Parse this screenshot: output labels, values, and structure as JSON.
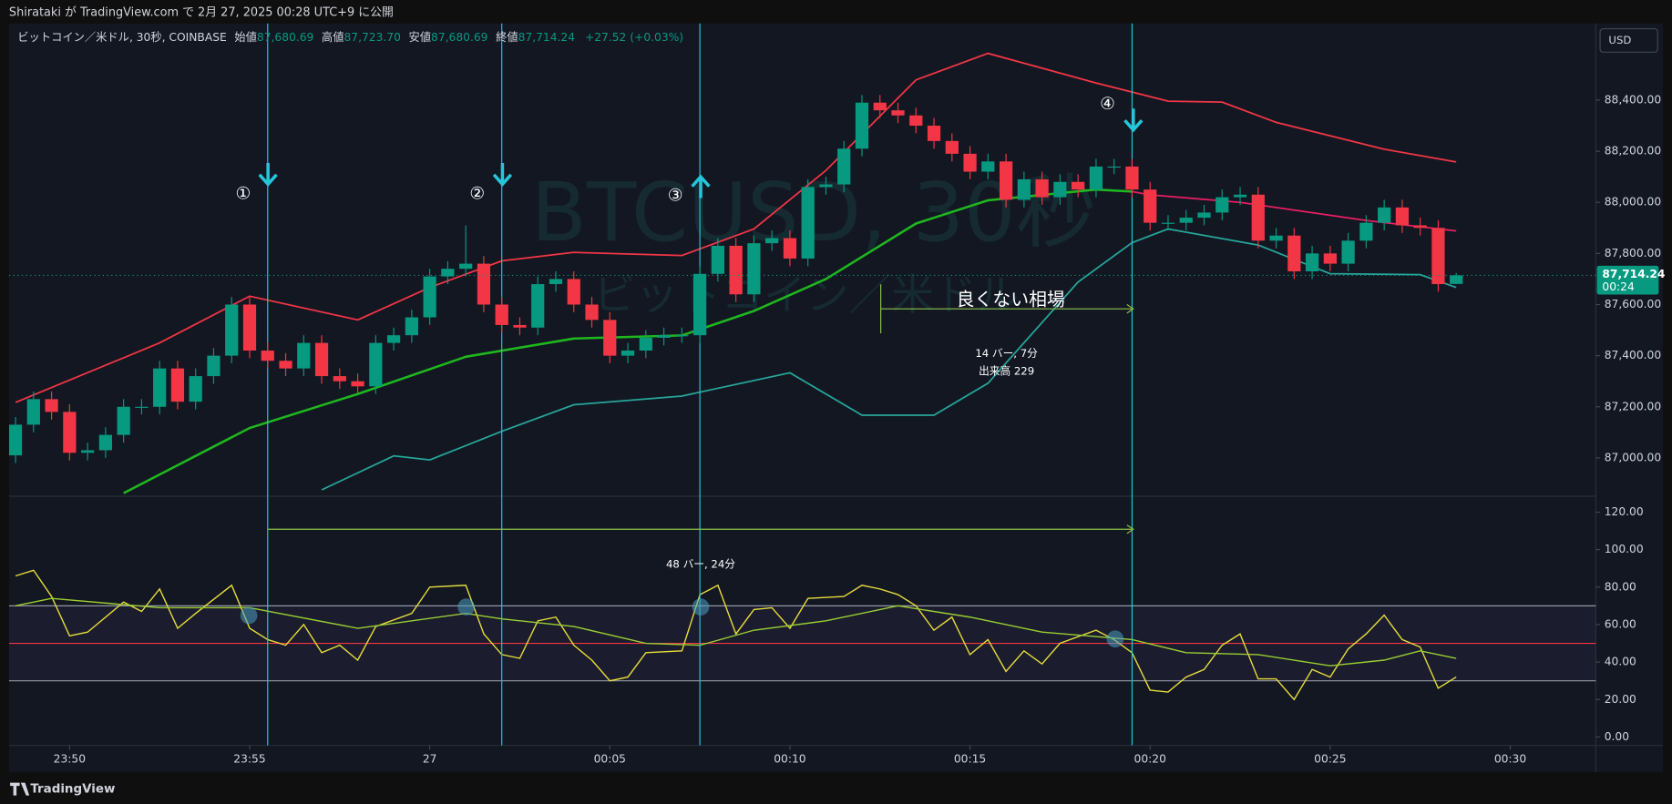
{
  "header": {
    "publisher": "Shirataki が TradingView.com で 2月 27, 2025 00:28 UTC+9 に公開"
  },
  "footer": {
    "brand": "TradingView"
  },
  "currency": "USD",
  "chart_data": {
    "type": "candlestick",
    "title": "ビットコイン／米ドル, 30秒, COINBASE",
    "legend": {
      "open_label": "始値",
      "open": "87,680.69",
      "high_label": "高値",
      "high": "87,723.70",
      "low_label": "安値",
      "low": "87,680.69",
      "close_label": "終値",
      "close": "87,714.24",
      "change": "+27.52 (+0.03%)"
    },
    "watermark": [
      "BTCUSD, 30秒",
      "ビットコイン／米ドル"
    ],
    "last_price_label": "87,714.24",
    "countdown": "00:24",
    "colors": {
      "up": "#089981",
      "down": "#f23645"
    },
    "open": [
      87010,
      87130,
      87230,
      87180,
      87020,
      87030,
      87090,
      87200,
      87200,
      87350,
      87220,
      87320,
      87400,
      87600,
      87420,
      87380,
      87350,
      87450,
      87320,
      87300,
      87280,
      87450,
      87480,
      87550,
      87710,
      87740,
      87760,
      87600,
      87520,
      87510,
      87680,
      87700,
      87600,
      87540,
      87400,
      87420,
      87470,
      87480,
      87480,
      87720,
      87830,
      87640,
      87840,
      87860,
      87780,
      88060,
      88070,
      88210,
      88390,
      88360,
      88340,
      88300,
      88240,
      88190,
      88120,
      88160,
      88010,
      88090,
      88020,
      88080,
      88050,
      88140,
      88140,
      88050,
      87920,
      87920,
      87940,
      87960,
      88020,
      88030,
      87850,
      87870,
      87730,
      87800,
      87760,
      87850,
      87920,
      87980,
      87910,
      87900,
      87680.69
    ],
    "high": [
      87160,
      87260,
      87260,
      87210,
      87060,
      87120,
      87230,
      87230,
      87380,
      87380,
      87350,
      87430,
      87630,
      87630,
      87450,
      87410,
      87480,
      87480,
      87350,
      87330,
      87480,
      87510,
      87580,
      87740,
      87770,
      87910,
      87790,
      87630,
      87550,
      87710,
      87730,
      87730,
      87630,
      87570,
      87450,
      87500,
      87510,
      87510,
      87750,
      87860,
      87860,
      87870,
      87890,
      87890,
      88090,
      88100,
      88240,
      88420,
      88420,
      88390,
      88370,
      88330,
      88270,
      88220,
      88190,
      88190,
      88120,
      88120,
      88110,
      88110,
      88170,
      88170,
      88170,
      88080,
      87950,
      87970,
      87990,
      88050,
      88060,
      88060,
      87900,
      87900,
      87830,
      87830,
      87880,
      87950,
      88010,
      88010,
      87940,
      87930,
      87723.7
    ],
    "low": [
      86980,
      87100,
      87150,
      86990,
      86990,
      87000,
      87060,
      87170,
      87170,
      87190,
      87190,
      87290,
      87370,
      87390,
      87350,
      87320,
      87320,
      87290,
      87270,
      87250,
      87250,
      87420,
      87450,
      87520,
      87680,
      87710,
      87570,
      87490,
      87480,
      87480,
      87650,
      87570,
      87510,
      87370,
      87370,
      87390,
      87440,
      87450,
      87450,
      87690,
      87610,
      87610,
      87810,
      87750,
      87750,
      88030,
      88040,
      88180,
      88330,
      88310,
      88270,
      88210,
      88160,
      88090,
      88090,
      87980,
      87980,
      87990,
      87990,
      88020,
      88020,
      88110,
      88020,
      87890,
      87890,
      87890,
      87910,
      87930,
      87990,
      87820,
      87820,
      87700,
      87700,
      87730,
      87730,
      87820,
      87890,
      87880,
      87870,
      87650,
      87680.69
    ],
    "close": [
      87130,
      87230,
      87180,
      87020,
      87030,
      87090,
      87200,
      87200,
      87350,
      87220,
      87320,
      87400,
      87600,
      87420,
      87380,
      87350,
      87450,
      87320,
      87300,
      87280,
      87450,
      87480,
      87550,
      87710,
      87740,
      87760,
      87600,
      87520,
      87510,
      87680,
      87700,
      87600,
      87540,
      87400,
      87420,
      87470,
      87480,
      87480,
      87720,
      87830,
      87640,
      87840,
      87860,
      87780,
      88060,
      88070,
      88210,
      88390,
      88360,
      88340,
      88300,
      88240,
      88190,
      88120,
      88160,
      88010,
      88090,
      88020,
      88080,
      88050,
      88140,
      88140,
      88050,
      87920,
      87920,
      87940,
      87960,
      88020,
      88030,
      87850,
      87870,
      87730,
      87800,
      87760,
      87850,
      87920,
      87980,
      87910,
      87900,
      87680,
      87714.24
    ],
    "xlim": [
      -0.36,
      87.75
    ],
    "xticks": [
      {
        "value": 3,
        "label": "23:50"
      },
      {
        "value": 13,
        "label": "23:55"
      },
      {
        "value": 23,
        "label": "27"
      },
      {
        "value": 33,
        "label": "00:05"
      },
      {
        "value": 43,
        "label": "00:10"
      },
      {
        "value": 53,
        "label": "00:15"
      },
      {
        "value": 63,
        "label": "00:20"
      },
      {
        "value": 73,
        "label": "00:25"
      },
      {
        "value": 83,
        "label": "00:30"
      }
    ],
    "ylim": [
      86850,
      88700
    ],
    "yticks": [
      {
        "value": 87000,
        "label": "87,000.00"
      },
      {
        "value": 87200,
        "label": "87,200.00"
      },
      {
        "value": 87400,
        "label": "87,400.00"
      },
      {
        "value": 87600,
        "label": "87,600.00"
      },
      {
        "value": 87800,
        "label": "87,800.00"
      },
      {
        "value": 88000,
        "label": "88,000.00"
      },
      {
        "value": 88200,
        "label": "88,200.00"
      },
      {
        "value": 88400,
        "label": "88,400.00"
      }
    ],
    "overlays": [
      {
        "color": "#f23645",
        "x": [
          0,
          8,
          13,
          19,
          23,
          27,
          31,
          37,
          41,
          45,
          50,
          54,
          60,
          64,
          67,
          70,
          76,
          80
        ],
        "values": [
          87217,
          87450,
          87633,
          87540,
          87667,
          87771,
          87804,
          87792,
          87896,
          88125,
          88479,
          88583,
          88467,
          88396,
          88392,
          88313,
          88208,
          88158
        ]
      },
      {
        "color": "#1fb71f",
        "x": [
          6,
          13,
          19,
          25,
          31,
          37,
          41,
          45,
          50,
          54,
          60,
          62
        ],
        "values": [
          86862,
          87117,
          87250,
          87396,
          87467,
          87479,
          87575,
          87700,
          87917,
          88008,
          88050,
          88042
        ]
      },
      {
        "color": "#e91e63",
        "x": [
          62,
          63,
          68,
          75,
          80
        ],
        "values": [
          88042,
          88029,
          88000,
          87929,
          87888
        ]
      },
      {
        "color": "#26a69a",
        "x": [
          17,
          21,
          23,
          27,
          31,
          37,
          43,
          47,
          51,
          54,
          59,
          62,
          64,
          69,
          73,
          78,
          80
        ],
        "values": [
          86875,
          87008,
          86992,
          87104,
          87208,
          87242,
          87333,
          87167,
          87167,
          87292,
          87688,
          87842,
          87896,
          87833,
          87721,
          87717,
          87667
        ]
      }
    ],
    "annotations": [
      {
        "x": 14,
        "label": "①"
      },
      {
        "x": 27,
        "label": "②"
      },
      {
        "x": 38,
        "label": "③"
      },
      {
        "x": 62,
        "label": "④"
      }
    ],
    "measure": {
      "label": "良くない相場",
      "bars": "14 バー, 7分",
      "volume": "出来高 229"
    },
    "rsi": {
      "ylim": [
        -4.5,
        128.5
      ],
      "yticks": [
        {
          "value": 0,
          "label": "0.00"
        },
        {
          "value": 20,
          "label": "20.00"
        },
        {
          "value": 40,
          "label": "40.00"
        },
        {
          "value": 60,
          "label": "60.00"
        },
        {
          "value": 80,
          "label": "80.00"
        },
        {
          "value": 100,
          "label": "100.00"
        },
        {
          "value": 120,
          "label": "120.00"
        }
      ],
      "levels": [
        70,
        50,
        30
      ],
      "measure": "48 バー, 24分",
      "series": [
        {
          "color": "#e6dc3c",
          "x": [
            0,
            1,
            2,
            3,
            4,
            6,
            7,
            8,
            9,
            10,
            12,
            13,
            14,
            15,
            16,
            17,
            18,
            19,
            20,
            22,
            23,
            25,
            26,
            27,
            28,
            29,
            30,
            31,
            32,
            33,
            34,
            35,
            37,
            38,
            39,
            40,
            41,
            42,
            43,
            44,
            46,
            47,
            48,
            49,
            50,
            51,
            52,
            53,
            54,
            55,
            56,
            57,
            58,
            60,
            61,
            62,
            63,
            64,
            65,
            66,
            67,
            68,
            69,
            70,
            71,
            72,
            73,
            74,
            75,
            76,
            77,
            78,
            79,
            80
          ],
          "values": [
            86,
            89,
            75,
            54,
            56,
            72,
            67,
            79,
            58,
            66,
            81,
            58,
            52,
            49,
            60,
            45,
            49,
            41,
            59,
            66,
            80,
            81,
            55,
            44,
            42,
            62,
            64,
            49,
            41,
            30,
            32,
            45,
            46,
            76,
            81,
            55,
            68,
            69,
            58,
            74,
            75,
            81,
            79,
            76,
            70,
            57,
            64,
            44,
            52,
            35,
            46,
            39,
            50,
            57,
            52,
            45,
            25,
            24,
            32,
            36,
            49,
            55,
            31,
            31,
            20,
            36,
            32,
            47,
            55,
            65,
            52,
            48,
            26,
            32
          ]
        },
        {
          "color": "#9acd32",
          "x": [
            0,
            2,
            8,
            13,
            19,
            25,
            27,
            31,
            35,
            38,
            41,
            45,
            49,
            53,
            57,
            62,
            65,
            69,
            73,
            76,
            78,
            80
          ],
          "values": [
            70,
            74,
            69,
            69,
            58,
            66,
            63,
            59,
            50,
            49,
            57,
            62,
            70,
            64,
            56,
            52,
            45,
            44,
            38,
            41,
            46,
            42
          ]
        }
      ]
    }
  }
}
